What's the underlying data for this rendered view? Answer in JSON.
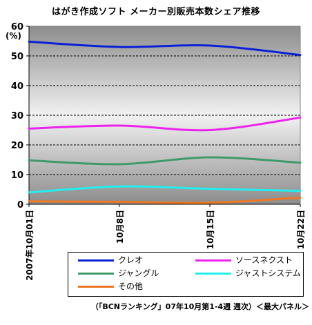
{
  "chart_data": {
    "type": "line",
    "title": "はがき作成ソフト メーカー別販売本数シェア推移",
    "ylabel": "(%)",
    "ylim": [
      0,
      60
    ],
    "yticks": [
      0,
      10,
      20,
      30,
      40,
      50,
      60
    ],
    "categories": [
      "2007年10月01日",
      "10月8日",
      "10月15日",
      "10月22日"
    ],
    "grid": "horizontal-dashed",
    "background": "gradient-gray",
    "series": [
      {
        "name": "クレオ",
        "color": "#0a1fd6",
        "values": [
          54.8,
          53.0,
          53.5,
          50.3
        ]
      },
      {
        "name": "ソースネクスト",
        "color": "#ee22ee",
        "values": [
          25.5,
          26.5,
          25.0,
          29.2
        ]
      },
      {
        "name": "ジャングル",
        "color": "#3f9a6a",
        "values": [
          14.8,
          13.5,
          15.8,
          14.0
        ]
      },
      {
        "name": "ジャストシステム",
        "color": "#22eeee",
        "values": [
          4.0,
          6.0,
          5.2,
          4.5
        ]
      },
      {
        "name": "その他",
        "color": "#ee7722",
        "values": [
          1.0,
          0.8,
          0.5,
          2.2
        ]
      }
    ],
    "legend": "bottom",
    "source_note": "（「BCNランキング」07年10月第1-4週 週次）＜最大パネル＞"
  }
}
